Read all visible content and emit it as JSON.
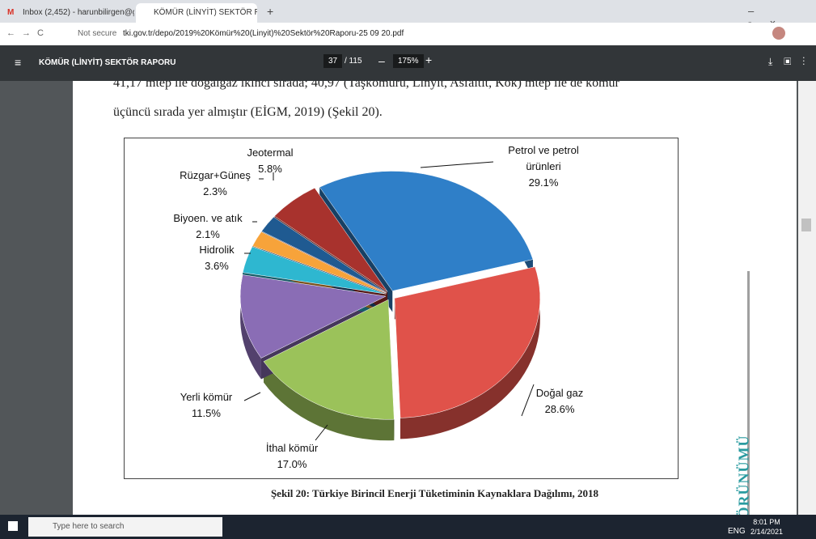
{
  "browser": {
    "tabs": [
      "Inbox (2,452) - harunbilirgen@g",
      "KÖMÜR (LİNYİT) SEKTÖR RAPORU"
    ],
    "security": "Not secure",
    "url": "tki.gov.tr/depo/2019%20Kömür%20(Linyit)%20Sektör%20Raporu-25 09 20.pdf"
  },
  "viewer": {
    "title": "KÖMÜR (LİNYİT) SEKTÖR RAPORU",
    "page": "37",
    "page_count": "/ 115",
    "zoom": "175%"
  },
  "document": {
    "paragraph": [
      "41,17 mtep ile doğalgaz ikinci sırada; 40,97 (Taşkömürü, Linyit, Asfaltit, Kok) mtep ile de kömür",
      "üçüncü sırada yer almıştır (EİGM, 2019) (Şekil 20)."
    ],
    "side_text": "ÖRÜNÜMÜ"
  },
  "chart_data": {
    "type": "pie",
    "title": "Şekil 20: Türkiye Birincil Enerji Tüketiminin Kaynaklara Dağılımı, 2018",
    "categories": [
      "Petrol ve petrol ürünleri",
      "Doğal gaz",
      "İthal kömür",
      "Yerli kömür",
      "Hidrolik",
      "Biyoen. ve atık",
      "Rüzgar+Güneş",
      "Jeotermal"
    ],
    "values": [
      29.1,
      28.6,
      17.0,
      11.5,
      3.6,
      2.1,
      2.3,
      5.8
    ],
    "value_labels": [
      "29.1%",
      "28.6%",
      "17.0%",
      "11.5%",
      "3.6%",
      "2.1%",
      "2.3%",
      "5.8%"
    ],
    "colors": [
      "#2f7fc8",
      "#e0524a",
      "#9bc25a",
      "#8a6db5",
      "#2eb7d0",
      "#f7a33a",
      "#1f5a91",
      "#a8322d"
    ]
  },
  "taskbar": {
    "search": "Type here to search",
    "language": "ENG",
    "time": "8:01 PM",
    "date": "2/14/2021"
  }
}
